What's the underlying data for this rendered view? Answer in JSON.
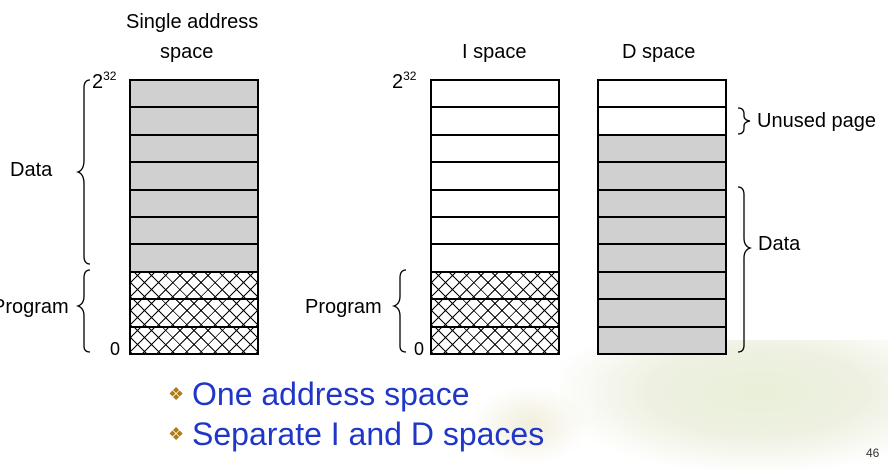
{
  "diagram": {
    "single": {
      "title_line1": "Single address",
      "title_line2": "space",
      "top_label_base": "2",
      "top_label_exp": "32",
      "bottom_label": "0",
      "data_label": "Data",
      "program_label": "Program",
      "cells": [
        "gray",
        "gray",
        "gray",
        "gray",
        "gray",
        "gray",
        "gray",
        "hatch",
        "hatch",
        "hatch"
      ]
    },
    "i_space": {
      "title": "I space",
      "top_label_base": "2",
      "top_label_exp": "32",
      "bottom_label": "0",
      "program_label": "Program",
      "cells": [
        "white",
        "white",
        "white",
        "white",
        "white",
        "white",
        "white",
        "hatch",
        "hatch",
        "hatch"
      ]
    },
    "d_space": {
      "title": "D space",
      "unused_label": "Unused page",
      "data_label": "Data",
      "cells": [
        "white",
        "white",
        "gray",
        "gray",
        "gray",
        "gray",
        "gray",
        "gray",
        "gray",
        "gray"
      ]
    }
  },
  "bullets": [
    "One address space",
    "Separate I and D spaces"
  ],
  "page_number": "46",
  "colors": {
    "bullet_text": "#1f36c8",
    "bullet_mark": "#b07a14",
    "gray_fill": "#d0d0d0"
  }
}
